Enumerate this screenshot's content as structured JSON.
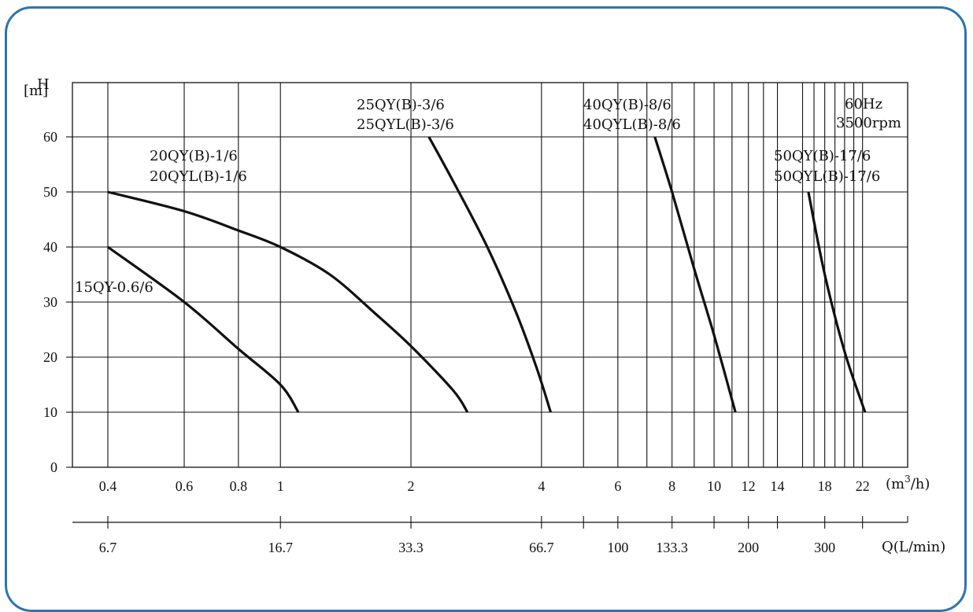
{
  "chart_data": {
    "type": "line",
    "x_scale": "log",
    "y_axis": {
      "label_line1": "H",
      "label_line2": "[m]",
      "ticks": [
        0,
        10,
        20,
        30,
        40,
        50,
        60
      ],
      "ylim": [
        0,
        70
      ]
    },
    "x_axis_top": {
      "unit": "(m³/h)",
      "unit_text": "(m",
      "unit_sup": "3",
      "unit_tail": "/h)",
      "ticks": [
        0.4,
        0.6,
        0.8,
        1,
        2,
        4,
        6,
        8,
        10,
        12,
        14,
        18,
        22
      ],
      "tick_labels": [
        "0.4",
        "0.6",
        "0.8",
        "1",
        "2",
        "4",
        "6",
        "8",
        "10",
        "12",
        "14",
        "18",
        "22"
      ]
    },
    "x_axis_bottom": {
      "unit": "Q(L/min)",
      "tick_labels": [
        "6.7",
        "16.7",
        "33.3",
        "66.7",
        "100",
        "133.3",
        "200",
        "300"
      ],
      "tick_m3h": [
        0.4,
        1,
        2,
        4,
        6,
        8,
        12,
        18
      ]
    },
    "minor_gridlines_m3h": [
      5,
      7,
      9,
      11,
      13,
      16,
      17,
      19,
      20,
      21
    ],
    "annotation_lines": [
      "60Hz",
      "3500rpm"
    ],
    "grid": true,
    "series": [
      {
        "name": "15QY-0.6/6",
        "labels": [
          "15QY-0.6/6"
        ],
        "points": [
          [
            0.4,
            40
          ],
          [
            0.6,
            30
          ],
          [
            0.8,
            21.5
          ],
          [
            1,
            15
          ],
          [
            1.1,
            10
          ]
        ]
      },
      {
        "name": "20QY(B)-1/6",
        "labels": [
          "20QY(B)-1/6",
          "20QYL(B)-1/6"
        ],
        "points": [
          [
            0.4,
            50
          ],
          [
            0.6,
            46.5
          ],
          [
            0.8,
            43
          ],
          [
            1,
            40
          ],
          [
            1.3,
            35
          ],
          [
            1.65,
            28
          ],
          [
            2,
            22
          ],
          [
            2.5,
            14
          ],
          [
            2.7,
            10
          ]
        ]
      },
      {
        "name": "25QY(B)-3/6",
        "labels": [
          "25QY(B)-3/6",
          "25QYL(B)-3/6"
        ],
        "points": [
          [
            2.2,
            60
          ],
          [
            2.5,
            52
          ],
          [
            3,
            40
          ],
          [
            3.5,
            28
          ],
          [
            3.9,
            18
          ],
          [
            4.2,
            10
          ]
        ]
      },
      {
        "name": "40QY(B)-8/6",
        "labels": [
          "40QY(B)-8/6",
          "40QYL(B)-8/6"
        ],
        "points": [
          [
            7.3,
            60
          ],
          [
            8,
            50
          ],
          [
            9,
            36
          ],
          [
            10,
            24
          ],
          [
            11.2,
            10
          ]
        ]
      },
      {
        "name": "50QY(B)-17/6",
        "labels": [
          "50QY(B)-17/6",
          "50QYL(B)-17/6"
        ],
        "points": [
          [
            16.5,
            50
          ],
          [
            18,
            35
          ],
          [
            20,
            21
          ],
          [
            22.3,
            10
          ]
        ]
      }
    ]
  }
}
